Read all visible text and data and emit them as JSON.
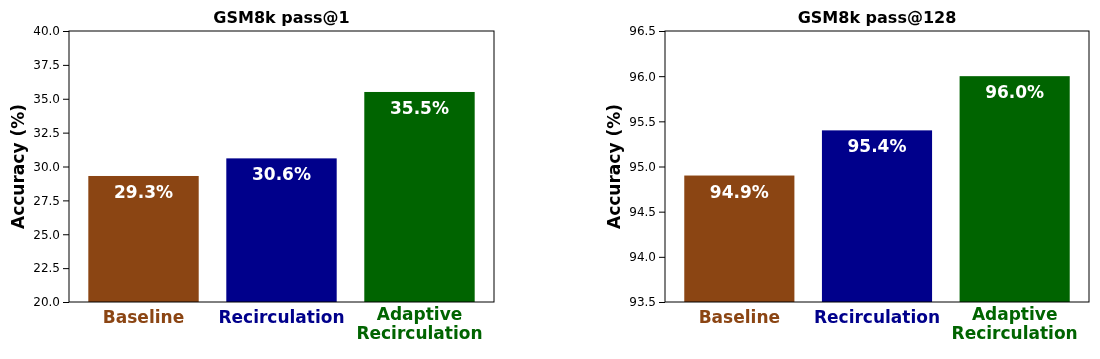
{
  "chart_data": [
    {
      "type": "bar",
      "title": "GSM8k pass@1",
      "ylabel": "Accuracy (%)",
      "categories": [
        "Baseline",
        "Recirculation",
        "Adaptive Recirculation"
      ],
      "values": [
        29.3,
        30.6,
        35.5
      ],
      "colors": [
        "#8b4513",
        "#00008b",
        "#006400"
      ],
      "value_labels": [
        "29.3%",
        "30.6%",
        "35.5%"
      ],
      "ylim": [
        20,
        40
      ],
      "yticks": [
        {
          "value": 20,
          "label": "20.0"
        },
        {
          "value": 22.5,
          "label": "22.5"
        },
        {
          "value": 25,
          "label": "25.0"
        },
        {
          "value": 27.5,
          "label": "27.5"
        },
        {
          "value": 30,
          "label": "30.0"
        },
        {
          "value": 32.5,
          "label": "32.5"
        },
        {
          "value": 35,
          "label": "35.0"
        },
        {
          "value": 37.5,
          "label": "37.5"
        },
        {
          "value": 40,
          "label": "40.0"
        }
      ]
    },
    {
      "type": "bar",
      "title": "GSM8k pass@128",
      "ylabel": "Accuracy (%)",
      "categories": [
        "Baseline",
        "Recirculation",
        "Adaptive Recirculation"
      ],
      "values": [
        94.9,
        95.4,
        96.0
      ],
      "colors": [
        "#8b4513",
        "#00008b",
        "#006400"
      ],
      "value_labels": [
        "94.9%",
        "95.4%",
        "96.0%"
      ],
      "ylim": [
        93.5,
        96.5
      ],
      "yticks": [
        {
          "value": 93.5,
          "label": "93.5"
        },
        {
          "value": 94,
          "label": "94.0"
        },
        {
          "value": 94.5,
          "label": "94.5"
        },
        {
          "value": 95,
          "label": "95.0"
        },
        {
          "value": 95.5,
          "label": "95.5"
        },
        {
          "value": 96,
          "label": "96.0"
        },
        {
          "value": 96.5,
          "label": "96.5"
        }
      ]
    }
  ]
}
